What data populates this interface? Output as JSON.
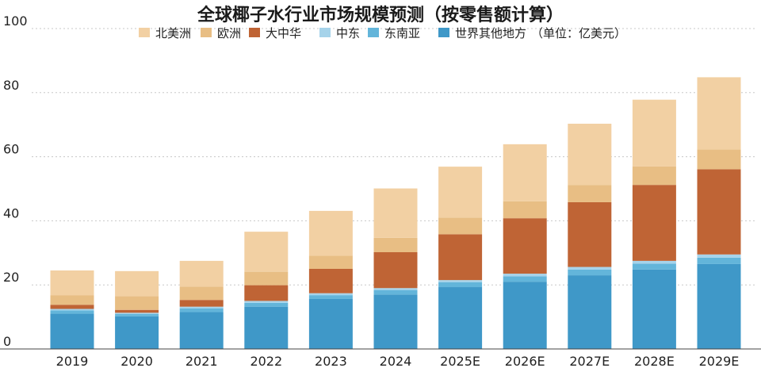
{
  "chart_data": {
    "type": "bar",
    "stacked": true,
    "title": "全球椰子水行业市场规模预测（按零售额计算）",
    "unit_note": "（单位：亿美元）",
    "categories": [
      "2019",
      "2020",
      "2021",
      "2022",
      "2023",
      "2024",
      "2025E",
      "2026E",
      "2027E",
      "2028E",
      "2029E"
    ],
    "ylim": [
      0,
      100
    ],
    "yticks": [
      0,
      20,
      40,
      60,
      80,
      100
    ],
    "grid": true,
    "legend_position": "top",
    "series": [
      {
        "name": "世界其他地方",
        "color": "#3f98c8",
        "values": [
          11.0,
          10.2,
          11.5,
          13.2,
          15.6,
          17.0,
          19.3,
          21.0,
          23.0,
          24.8,
          26.5
        ]
      },
      {
        "name": "东南亚",
        "color": "#63b5da",
        "values": [
          1.0,
          0.7,
          1.2,
          1.2,
          1.2,
          1.4,
          1.5,
          1.7,
          1.8,
          1.8,
          2.0
        ]
      },
      {
        "name": "中东",
        "color": "#a6d3ea",
        "values": [
          0.5,
          0.4,
          0.5,
          0.6,
          0.6,
          0.6,
          0.7,
          0.8,
          0.8,
          0.9,
          1.0
        ]
      },
      {
        "name": "大中华",
        "color": "#bf6435",
        "values": [
          1.3,
          0.9,
          2.1,
          4.9,
          7.6,
          11.2,
          14.3,
          17.3,
          20.2,
          23.7,
          26.6
        ]
      },
      {
        "name": "欧洲",
        "color": "#e8be84",
        "values": [
          3.0,
          4.3,
          4.2,
          4.2,
          4.1,
          4.5,
          5.2,
          5.3,
          5.4,
          5.8,
          6.2
        ]
      },
      {
        "name": "北美洲",
        "color": "#f2d0a3",
        "values": [
          7.7,
          7.8,
          8.0,
          12.5,
          14.0,
          15.4,
          15.9,
          17.8,
          19.1,
          20.8,
          22.5
        ]
      }
    ],
    "legend_order": [
      "北美洲",
      "欧洲",
      "大中华",
      "中东",
      "东南亚",
      "世界其他地方"
    ]
  }
}
